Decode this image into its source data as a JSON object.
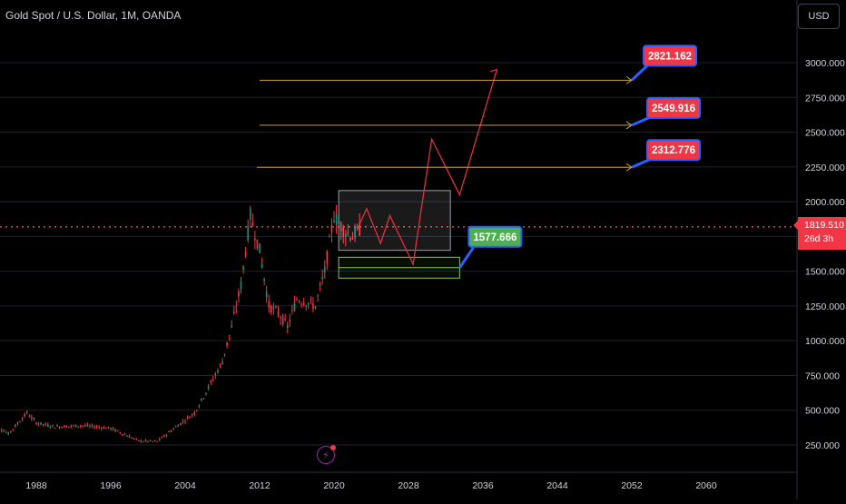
{
  "symbol": {
    "title": "Gold Spot / U.S. Dollar, 1M, OANDA"
  },
  "currency_button": {
    "label": "USD"
  },
  "price_tag": {
    "price": "1819.510",
    "countdown": "26d 3h"
  },
  "colors": {
    "background": "#000000",
    "grid": "#1e222d",
    "axis_text": "#d1d4dc",
    "candle": "#f23645",
    "target_line": "#c9a227",
    "callout_red": "#f23645",
    "callout_green": "#4caf50",
    "callout_border": "#2962ff",
    "projection": "#e2303f",
    "current_price_line": "#f23645"
  },
  "chart_data": {
    "type": "candlestick",
    "x_axis": {
      "ticks": [
        "1988",
        "1996",
        "2004",
        "2012",
        "2020",
        "2028",
        "2036",
        "2044",
        "2052",
        "2060"
      ]
    },
    "y_axis": {
      "ticks": [
        "250.000",
        "500.000",
        "750.000",
        "1000.000",
        "1250.000",
        "1500.000",
        "1750.000",
        "2000.000",
        "2250.000",
        "2500.000",
        "2750.000",
        "3000.000"
      ],
      "range": [
        150,
        3250
      ]
    },
    "current_price": 1819.51,
    "price_history": [
      {
        "year": 1983,
        "close": 420
      },
      {
        "year": 1985,
        "close": 330
      },
      {
        "year": 1987,
        "close": 480
      },
      {
        "year": 1988,
        "close": 410
      },
      {
        "year": 1990,
        "close": 380
      },
      {
        "year": 1993,
        "close": 390
      },
      {
        "year": 1996,
        "close": 370
      },
      {
        "year": 1999,
        "close": 280
      },
      {
        "year": 2001,
        "close": 275
      },
      {
        "year": 2003,
        "close": 380
      },
      {
        "year": 2005,
        "close": 480
      },
      {
        "year": 2006,
        "close": 600
      },
      {
        "year": 2008,
        "close": 850
      },
      {
        "year": 2009,
        "close": 1100
      },
      {
        "year": 2010,
        "close": 1400
      },
      {
        "year": 2011,
        "close": 1900
      },
      {
        "year": 2012,
        "close": 1650
      },
      {
        "year": 2013,
        "close": 1250
      },
      {
        "year": 2014,
        "close": 1200
      },
      {
        "year": 2015,
        "close": 1100
      },
      {
        "year": 2016,
        "close": 1300
      },
      {
        "year": 2017,
        "close": 1280
      },
      {
        "year": 2018,
        "close": 1250
      },
      {
        "year": 2019,
        "close": 1500
      },
      {
        "year": 2020,
        "close": 1900
      },
      {
        "year": 2021,
        "close": 1800
      },
      {
        "year": 2022,
        "close": 1750
      },
      {
        "year": 2023,
        "close": 1820
      }
    ],
    "target_lines": [
      {
        "price": 2821.162,
        "label": "2821.162",
        "style": "red"
      },
      {
        "price": 2549.916,
        "label": "2549.916",
        "style": "red"
      },
      {
        "price": 2312.776,
        "label": "2312.776",
        "style": "red"
      }
    ],
    "support": {
      "price": 1577.666,
      "label": "1577.666",
      "style": "green"
    },
    "projection_path": [
      {
        "year": 2022.5,
        "price": 1800
      },
      {
        "year": 2023.5,
        "price": 1950
      },
      {
        "year": 2025,
        "price": 1700
      },
      {
        "year": 2026,
        "price": 1900
      },
      {
        "year": 2028.5,
        "price": 1550
      },
      {
        "year": 2030.5,
        "price": 2450
      },
      {
        "year": 2033.5,
        "price": 2050
      },
      {
        "year": 2037.5,
        "price": 2950
      }
    ],
    "consolidation_box": {
      "year_start": 2020.5,
      "year_end": 2032.5,
      "price_low": 1650,
      "price_high": 2080
    },
    "support_box": {
      "year_start": 2020.5,
      "year_end": 2033.5,
      "price_low": 1450,
      "price_high": 1600
    }
  }
}
